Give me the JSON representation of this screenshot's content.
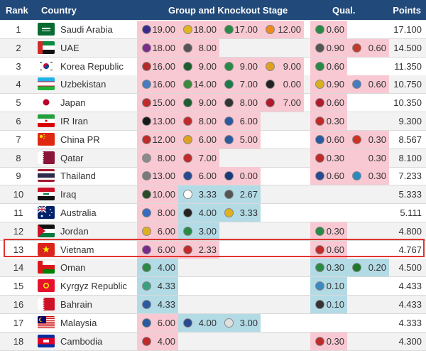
{
  "header": {
    "rank": "Rank",
    "country": "Country",
    "group": "Group and Knockout Stage",
    "qual": "Qual.",
    "points": "Points"
  },
  "colors": {
    "header": "#21497a",
    "pink": "#f9c9d3",
    "blue": "#b3dbe6",
    "highlight": "#e0342f"
  },
  "rows": [
    {
      "rank": "1",
      "country": "Saudi Arabia",
      "flag": "sa",
      "total": "17.100",
      "cells": [
        {
          "v": "19.00",
          "c": "p",
          "l": "#3b2a8c"
        },
        {
          "v": "18.00",
          "c": "p",
          "l": "#e3b422"
        },
        {
          "v": "17.00",
          "c": "p",
          "l": "#2a8a45"
        },
        {
          "v": "12.00",
          "c": "p",
          "l": "#f08a1c"
        },
        {
          "v": "0.60",
          "c": "p",
          "l": "#2a8a45"
        },
        {
          "v": "",
          "c": "",
          "l": ""
        }
      ]
    },
    {
      "rank": "2",
      "country": "UAE",
      "flag": "ae",
      "total": "14.500",
      "cells": [
        {
          "v": "18.00",
          "c": "p",
          "l": "#7b2f8a"
        },
        {
          "v": "8.00",
          "c": "p",
          "l": "#555555"
        },
        {
          "v": "",
          "c": "",
          "l": ""
        },
        {
          "v": "",
          "c": "",
          "l": ""
        },
        {
          "v": "0.90",
          "c": "p",
          "l": "#555555"
        },
        {
          "v": "0.60",
          "c": "p",
          "l": "#c23a2a"
        }
      ]
    },
    {
      "rank": "3",
      "country": "Korea Republic",
      "flag": "kr",
      "total": "11.350",
      "cells": [
        {
          "v": "16.00",
          "c": "p",
          "l": "#b22a2a"
        },
        {
          "v": "9.00",
          "c": "p",
          "l": "#1d5d2f"
        },
        {
          "v": "9.00",
          "c": "p",
          "l": "#2a8a45"
        },
        {
          "v": "9.00",
          "c": "p",
          "l": "#e0a020"
        },
        {
          "v": "0.60",
          "c": "p",
          "l": "#2a8a45"
        },
        {
          "v": "",
          "c": "",
          "l": ""
        }
      ]
    },
    {
      "rank": "4",
      "country": "Uzbekistan",
      "flag": "uz",
      "total": "10.750",
      "cells": [
        {
          "v": "16.00",
          "c": "p",
          "l": "#4a7ac0"
        },
        {
          "v": "14.00",
          "c": "p",
          "l": "#3c8a3c"
        },
        {
          "v": "7.00",
          "c": "p",
          "l": "#1d7a4a"
        },
        {
          "v": "0.00",
          "c": "p",
          "l": "#222222"
        },
        {
          "v": "0.90",
          "c": "p",
          "l": "#d9b020"
        },
        {
          "v": "0.60",
          "c": "p",
          "l": "#4a7ac0"
        }
      ]
    },
    {
      "rank": "5",
      "country": "Japan",
      "flag": "jp",
      "total": "10.350",
      "cells": [
        {
          "v": "15.00",
          "c": "p",
          "l": "#c02a2a"
        },
        {
          "v": "9.00",
          "c": "p",
          "l": "#1d5d2f"
        },
        {
          "v": "8.00",
          "c": "p",
          "l": "#333333"
        },
        {
          "v": "7.00",
          "c": "p",
          "l": "#b01a2a"
        },
        {
          "v": "0.60",
          "c": "p",
          "l": "#b01a2a"
        },
        {
          "v": "",
          "c": "",
          "l": ""
        }
      ]
    },
    {
      "rank": "6",
      "country": "IR Iran",
      "flag": "ir",
      "total": "9.300",
      "cells": [
        {
          "v": "13.00",
          "c": "p",
          "l": "#1a1a1a"
        },
        {
          "v": "8.00",
          "c": "p",
          "l": "#c02a2a"
        },
        {
          "v": "6.00",
          "c": "p",
          "l": "#2a5aa0"
        },
        {
          "v": "",
          "c": "",
          "l": ""
        },
        {
          "v": "0.30",
          "c": "p",
          "l": "#c02a2a"
        },
        {
          "v": "",
          "c": "",
          "l": ""
        }
      ]
    },
    {
      "rank": "7",
      "country": "China PR",
      "flag": "cn",
      "total": "8.567",
      "cells": [
        {
          "v": "12.00",
          "c": "p",
          "l": "#c02a2a"
        },
        {
          "v": "6.00",
          "c": "p",
          "l": "#e0a020"
        },
        {
          "v": "5.00",
          "c": "p",
          "l": "#2a5aa0"
        },
        {
          "v": "",
          "c": "",
          "l": ""
        },
        {
          "v": "0.60",
          "c": "p",
          "l": "#2a5aa0"
        },
        {
          "v": "0.30",
          "c": "p",
          "l": "#d03020"
        }
      ]
    },
    {
      "rank": "8",
      "country": "Qatar",
      "flag": "qa",
      "total": "8.100",
      "cells": [
        {
          "v": "8.00",
          "c": "p",
          "l": "#8a8a8a"
        },
        {
          "v": "7.00",
          "c": "p",
          "l": "#c02a2a"
        },
        {
          "v": "",
          "c": "",
          "l": ""
        },
        {
          "v": "",
          "c": "",
          "l": ""
        },
        {
          "v": "0.30",
          "c": "p",
          "l": "#c02a2a"
        },
        {
          "v": "0.30",
          "c": "p",
          "l": ""
        }
      ]
    },
    {
      "rank": "9",
      "country": "Thailand",
      "flag": "th",
      "total": "7.233",
      "cells": [
        {
          "v": "13.00",
          "c": "p",
          "l": "#7a7a7a"
        },
        {
          "v": "6.00",
          "c": "p",
          "l": "#2a4a90"
        },
        {
          "v": "0.00",
          "c": "p",
          "l": "#1a3a7a"
        },
        {
          "v": "",
          "c": "",
          "l": ""
        },
        {
          "v": "0.60",
          "c": "p",
          "l": "#2a4a90"
        },
        {
          "v": "0.30",
          "c": "p",
          "l": "#2a8ac0"
        }
      ]
    },
    {
      "rank": "10",
      "country": "Iraq",
      "flag": "iq",
      "total": "5.333",
      "cells": [
        {
          "v": "10.00",
          "c": "p",
          "l": "#2a4a2a"
        },
        {
          "v": "3.33",
          "c": "b",
          "l": "#ffffff"
        },
        {
          "v": "2.67",
          "c": "b",
          "l": "#555555"
        },
        {
          "v": "",
          "c": "",
          "l": ""
        },
        {
          "v": "",
          "c": "",
          "l": ""
        },
        {
          "v": "",
          "c": "",
          "l": ""
        }
      ]
    },
    {
      "rank": "11",
      "country": "Australia",
      "flag": "au",
      "total": "5.111",
      "cells": [
        {
          "v": "8.00",
          "c": "p",
          "l": "#3a6ac0"
        },
        {
          "v": "4.00",
          "c": "b",
          "l": "#222222"
        },
        {
          "v": "3.33",
          "c": "b",
          "l": "#e0b020"
        },
        {
          "v": "",
          "c": "",
          "l": ""
        },
        {
          "v": "",
          "c": "",
          "l": ""
        },
        {
          "v": "",
          "c": "",
          "l": ""
        }
      ]
    },
    {
      "rank": "12",
      "country": "Jordan",
      "flag": "jo",
      "total": "4.800",
      "cells": [
        {
          "v": "6.00",
          "c": "p",
          "l": "#e0b020"
        },
        {
          "v": "3.00",
          "c": "b",
          "l": "#2a8a45"
        },
        {
          "v": "",
          "c": "",
          "l": ""
        },
        {
          "v": "",
          "c": "",
          "l": ""
        },
        {
          "v": "0.30",
          "c": "p",
          "l": "#2a8a45"
        },
        {
          "v": "",
          "c": "",
          "l": ""
        }
      ]
    },
    {
      "rank": "13",
      "country": "Vietnam",
      "flag": "vn",
      "total": "4.767",
      "cells": [
        {
          "v": "6.00",
          "c": "p",
          "l": "#7a2a8a"
        },
        {
          "v": "2.33",
          "c": "p",
          "l": "#c02a2a"
        },
        {
          "v": "",
          "c": "",
          "l": ""
        },
        {
          "v": "",
          "c": "",
          "l": ""
        },
        {
          "v": "0.60",
          "c": "p",
          "l": "#c02a2a"
        },
        {
          "v": "",
          "c": "",
          "l": ""
        }
      ]
    },
    {
      "rank": "14",
      "country": "Oman",
      "flag": "om",
      "total": "4.500",
      "cells": [
        {
          "v": "4.00",
          "c": "b",
          "l": "#2a8a45"
        },
        {
          "v": "",
          "c": "",
          "l": ""
        },
        {
          "v": "",
          "c": "",
          "l": ""
        },
        {
          "v": "",
          "c": "",
          "l": ""
        },
        {
          "v": "0.30",
          "c": "b",
          "l": "#2a8a45"
        },
        {
          "v": "0.20",
          "c": "b",
          "l": "#1d7a2a"
        }
      ]
    },
    {
      "rank": "15",
      "country": "Kyrgyz Republic",
      "flag": "kg",
      "total": "4.433",
      "cells": [
        {
          "v": "4.33",
          "c": "b",
          "l": "#3aa080"
        },
        {
          "v": "",
          "c": "",
          "l": ""
        },
        {
          "v": "",
          "c": "",
          "l": ""
        },
        {
          "v": "",
          "c": "",
          "l": ""
        },
        {
          "v": "0.10",
          "c": "b",
          "l": "#3a8ac0"
        },
        {
          "v": "",
          "c": "",
          "l": ""
        }
      ]
    },
    {
      "rank": "16",
      "country": "Bahrain",
      "flag": "bh",
      "total": "4.433",
      "cells": [
        {
          "v": "4.33",
          "c": "b",
          "l": "#2a5aa0"
        },
        {
          "v": "",
          "c": "",
          "l": ""
        },
        {
          "v": "",
          "c": "",
          "l": ""
        },
        {
          "v": "",
          "c": "",
          "l": ""
        },
        {
          "v": "0.10",
          "c": "b",
          "l": "#333333"
        },
        {
          "v": "",
          "c": "",
          "l": ""
        }
      ]
    },
    {
      "rank": "17",
      "country": "Malaysia",
      "flag": "my",
      "total": "4.333",
      "cells": [
        {
          "v": "6.00",
          "c": "p",
          "l": "#2a5aa0"
        },
        {
          "v": "4.00",
          "c": "b",
          "l": "#2a4a90"
        },
        {
          "v": "3.00",
          "c": "b",
          "l": "#e0e0e0"
        },
        {
          "v": "",
          "c": "",
          "l": ""
        },
        {
          "v": "",
          "c": "",
          "l": ""
        },
        {
          "v": "",
          "c": "",
          "l": ""
        }
      ]
    },
    {
      "rank": "18",
      "country": "Cambodia",
      "flag": "kh",
      "total": "4.300",
      "cells": [
        {
          "v": "4.00",
          "c": "p",
          "l": "#c02a2a"
        },
        {
          "v": "",
          "c": "",
          "l": ""
        },
        {
          "v": "",
          "c": "",
          "l": ""
        },
        {
          "v": "",
          "c": "",
          "l": ""
        },
        {
          "v": "0.30",
          "c": "p",
          "l": "#c02a2a"
        },
        {
          "v": "",
          "c": "",
          "l": ""
        }
      ]
    }
  ]
}
